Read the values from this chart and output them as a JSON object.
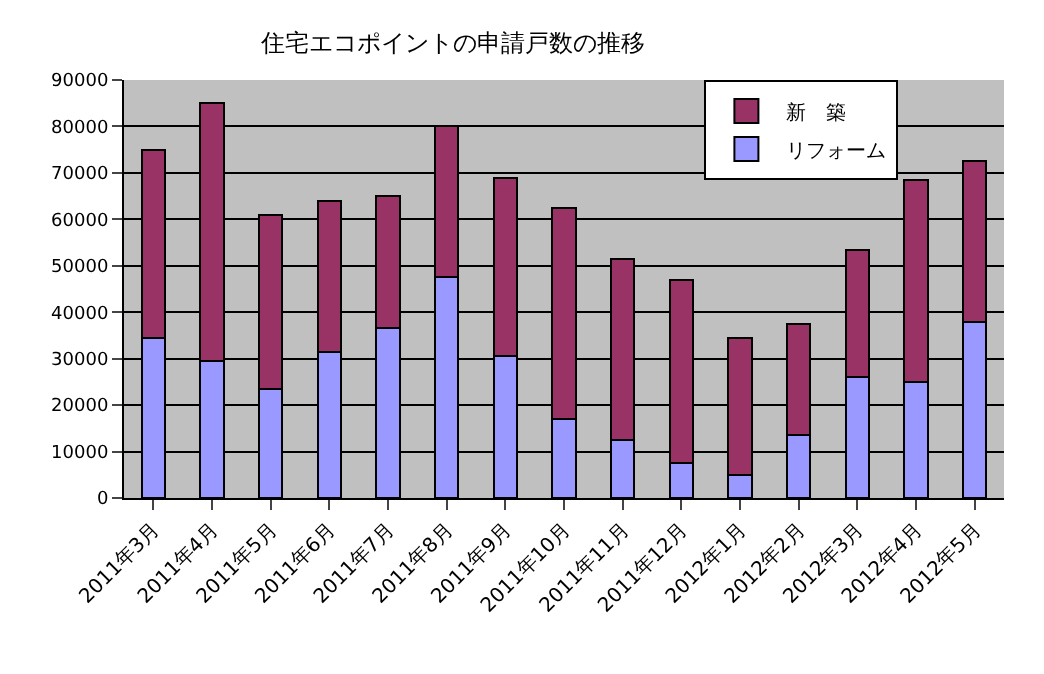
{
  "chart_data": {
    "type": "bar",
    "title": "住宅エコポイントの申請戸数の推移",
    "stacked": true,
    "categories": [
      "2011年3月",
      "2011年4月",
      "2011年5月",
      "2011年6月",
      "2011年7月",
      "2011年8月",
      "2011年9月",
      "2011年10月",
      "2011年11月",
      "2011年12月",
      "2012年1月",
      "2012年2月",
      "2012年3月",
      "2012年4月",
      "2012年5月"
    ],
    "series": [
      {
        "name": "リフォーム",
        "color": "#9999ff",
        "values": [
          34500,
          29500,
          23500,
          31500,
          36500,
          47500,
          30500,
          17000,
          12500,
          7500,
          5000,
          13500,
          26000,
          25000,
          38000
        ]
      },
      {
        "name": "新　築",
        "color": "#993366",
        "values": [
          40500,
          55500,
          37500,
          32500,
          28500,
          32500,
          38500,
          45500,
          39000,
          39500,
          29500,
          24000,
          27500,
          43500,
          34500
        ]
      }
    ],
    "ylim": [
      0,
      90000
    ],
    "yticks": [
      0,
      10000,
      20000,
      30000,
      40000,
      50000,
      60000,
      70000,
      80000,
      90000
    ],
    "grid": "y",
    "legend": "top right"
  }
}
